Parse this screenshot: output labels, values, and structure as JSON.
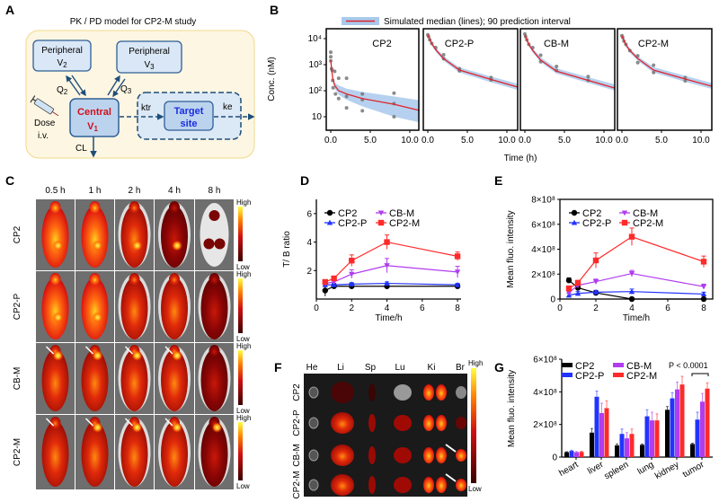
{
  "panel_letters": {
    "A": "A",
    "B": "B",
    "C": "C",
    "D": "D",
    "E": "E",
    "F": "F",
    "G": "G"
  },
  "panel_a": {
    "title": "PK / PD model for CP2-M study",
    "peripheral_v2": {
      "label": "Peripheral",
      "sym": "V",
      "sub": "2"
    },
    "peripheral_v3": {
      "label": "Peripheral",
      "sym": "V",
      "sub": "3"
    },
    "central": {
      "label": "Central",
      "sym": "V",
      "sub": "1"
    },
    "target": {
      "line1": "Target",
      "line2": "site"
    },
    "q2": {
      "sym": "Q",
      "sub": "2"
    },
    "q3": {
      "sym": "Q",
      "sub": "3"
    },
    "ktr": "ktr",
    "ke": "ke",
    "cl": "CL",
    "dose": "Dose",
    "route": "i.v."
  },
  "panel_c": {
    "times": [
      "0.5 h",
      "1 h",
      "2 h",
      "4 h",
      "8 h"
    ],
    "rows": [
      "CP2",
      "CP2-P",
      "CB-M",
      "CP2-M"
    ],
    "colorbar_high": "High",
    "colorbar_low": "Low"
  },
  "panel_f": {
    "organs": [
      "He",
      "Li",
      "Sp",
      "Lu",
      "Ki",
      "Br"
    ],
    "rows": [
      "CP2",
      "CP2-P",
      "CB-M",
      "CP2-M"
    ],
    "colorbar_high": "High",
    "colorbar_low": "Low"
  },
  "colors": {
    "CP2": "#000000",
    "CP2-P": "#2233ff",
    "CB-M": "#b13cf0",
    "CP2-M": "#ff2a2a",
    "band": "#a9c9ec",
    "median": "#e0242b"
  },
  "chart_data": [
    {
      "id": "B",
      "type": "line",
      "legend": "Simulated median (lines); 90 prediction interval",
      "xlabel": "Time (h)",
      "ylabel": "Conc. (nM)",
      "yscale": "log",
      "ylim": [
        4,
        20000
      ],
      "xlim": [
        -0.6,
        13
      ],
      "xticks": [
        0,
        5,
        10
      ],
      "xtick_labels": [
        "0.0",
        "5.0",
        "10.0"
      ],
      "yticks": [
        10,
        100,
        1000,
        10000
      ],
      "ytick_labels": [
        "10",
        "10²",
        "10³",
        "10⁴"
      ],
      "panels": [
        {
          "name": "CP2",
          "t": [
            0,
            0.1,
            0.25,
            0.5,
            1,
            2,
            4,
            8,
            12.5
          ],
          "median": [
            1500,
            700,
            300,
            160,
            100,
            75,
            50,
            30,
            14
          ],
          "lower": [
            1300,
            600,
            250,
            120,
            70,
            45,
            25,
            10,
            5
          ],
          "upper": [
            1700,
            800,
            350,
            200,
            160,
            120,
            90,
            60,
            38
          ],
          "observed": [
            [
              0,
              3000
            ],
            [
              0,
              2000
            ],
            [
              0,
              1400
            ],
            [
              0.1,
              700
            ],
            [
              0.2,
              600
            ],
            [
              0.25,
              250
            ],
            [
              0.3,
              130
            ],
            [
              0.5,
              550
            ],
            [
              0.6,
              75
            ],
            [
              1,
              300
            ],
            [
              1,
              50
            ],
            [
              2,
              300
            ],
            [
              2,
              60
            ],
            [
              2,
              22
            ],
            [
              4,
              75
            ],
            [
              4,
              45
            ],
            [
              4,
              17
            ],
            [
              8,
              80
            ],
            [
              8,
              32
            ],
            [
              8,
              10
            ],
            [
              12.5,
              38
            ],
            [
              12.5,
              25
            ],
            [
              12.5,
              9
            ]
          ]
        },
        {
          "name": "CP2-P",
          "t": [
            0,
            0.25,
            0.5,
            1,
            2,
            4,
            8,
            12.5
          ],
          "median": [
            14000,
            9500,
            6500,
            3800,
            1700,
            620,
            270,
            110
          ],
          "lower": [
            12000,
            8000,
            5400,
            3100,
            1400,
            500,
            210,
            85
          ],
          "upper": [
            16000,
            11000,
            7600,
            4500,
            2100,
            780,
            350,
            150
          ],
          "observed": [
            [
              0,
              14000
            ],
            [
              0.1,
              12000
            ],
            [
              0.25,
              9000
            ],
            [
              0.5,
              6500
            ],
            [
              1,
              4500
            ],
            [
              2,
              2400
            ],
            [
              2,
              1700
            ],
            [
              4,
              700
            ],
            [
              4,
              580
            ],
            [
              8,
              320
            ],
            [
              8,
              260
            ],
            [
              12.5,
              110
            ]
          ]
        },
        {
          "name": "CB-M",
          "t": [
            0,
            0.25,
            0.5,
            1,
            2,
            4,
            8,
            12.5
          ],
          "median": [
            14000,
            9000,
            6000,
            3500,
            1500,
            560,
            250,
            100
          ],
          "lower": [
            12000,
            7600,
            5000,
            2900,
            1250,
            450,
            200,
            80
          ],
          "upper": [
            16000,
            10500,
            7000,
            4200,
            1900,
            720,
            330,
            140
          ],
          "observed": [
            [
              0,
              15000
            ],
            [
              0.1,
              12000
            ],
            [
              0.25,
              9000
            ],
            [
              0.5,
              6000
            ],
            [
              1,
              4500
            ],
            [
              2,
              2300
            ],
            [
              2,
              1300
            ],
            [
              4,
              850
            ],
            [
              4,
              600
            ],
            [
              8,
              350
            ],
            [
              8,
              250
            ],
            [
              12.5,
              100
            ]
          ]
        },
        {
          "name": "CP2-M",
          "t": [
            0,
            0.25,
            0.5,
            1,
            2,
            4,
            8,
            12.5
          ],
          "median": [
            13000,
            8500,
            5800,
            3500,
            1700,
            620,
            280,
            120
          ],
          "lower": [
            11000,
            7200,
            4800,
            2900,
            1400,
            500,
            220,
            95
          ],
          "upper": [
            15000,
            10000,
            6900,
            4200,
            2100,
            800,
            370,
            160
          ],
          "observed": [
            [
              0,
              13000
            ],
            [
              0.1,
              11000
            ],
            [
              0.25,
              8000
            ],
            [
              0.5,
              6000
            ],
            [
              1,
              3500
            ],
            [
              2,
              2200
            ],
            [
              2,
              1200
            ],
            [
              4,
              950
            ],
            [
              4,
              500
            ],
            [
              8,
              320
            ],
            [
              8,
              240
            ],
            [
              12.5,
              100
            ],
            [
              12.5,
              85
            ]
          ]
        }
      ]
    },
    {
      "id": "D",
      "type": "line",
      "xlabel": "Time/h",
      "ylabel": "T/ B ratio",
      "xlim": [
        0,
        8.2
      ],
      "ylim": [
        0,
        7
      ],
      "xticks": [
        0,
        2,
        4,
        6,
        8
      ],
      "yticks": [
        2,
        4,
        6
      ],
      "xtick_labels": [
        "0",
        "2",
        "4",
        "6",
        "8"
      ],
      "ytick_labels": [
        "2",
        "4",
        "6"
      ],
      "legend": "top-left",
      "x": [
        0.5,
        1,
        2,
        4,
        8
      ],
      "series": [
        {
          "name": "CP2",
          "marker": "circle",
          "values": [
            0.6,
            0.9,
            0.9,
            0.9,
            0.9
          ],
          "error": [
            0.4,
            0.15,
            0.2,
            0.2,
            0.15
          ]
        },
        {
          "name": "CP2-P",
          "marker": "triangle-up",
          "values": [
            1.0,
            1.0,
            1.05,
            1.1,
            1.0
          ],
          "error": [
            0.1,
            0.1,
            0.1,
            0.1,
            0.1
          ]
        },
        {
          "name": "CB-M",
          "marker": "triangle-down",
          "values": [
            1.1,
            1.2,
            1.75,
            2.35,
            1.9
          ],
          "error": [
            0.1,
            0.15,
            0.3,
            0.5,
            0.4
          ]
        },
        {
          "name": "CP2-M",
          "marker": "square",
          "values": [
            1.2,
            1.45,
            2.7,
            4.0,
            3.0
          ],
          "error": [
            0.1,
            0.15,
            0.4,
            0.5,
            0.3
          ]
        }
      ]
    },
    {
      "id": "E",
      "type": "line",
      "xlabel": "Time/h",
      "ylabel": "Mean fluo. intensity",
      "xlim": [
        0,
        8.5
      ],
      "ylim": [
        0,
        800000000
      ],
      "xticks": [
        0,
        2,
        4,
        6,
        8
      ],
      "yticks": [
        0,
        200000000,
        400000000,
        600000000,
        800000000
      ],
      "xtick_labels": [
        "0",
        "2",
        "4",
        "6",
        "8"
      ],
      "ytick_labels": [
        "0",
        "2×10⁸",
        "4×10⁸",
        "6×10⁸",
        "8×10⁸"
      ],
      "legend": "top-left",
      "x": [
        0.5,
        1,
        2,
        4,
        8
      ],
      "series": [
        {
          "name": "CP2",
          "marker": "circle",
          "values": [
            150000000,
            90000000,
            50000000,
            0,
            0
          ],
          "error": [
            20000000,
            15000000,
            15000000,
            5000000,
            5000000
          ]
        },
        {
          "name": "CP2-P",
          "marker": "triangle-up",
          "values": [
            30000000,
            45000000,
            55000000,
            60000000,
            40000000
          ],
          "error": [
            15000000,
            15000000,
            15000000,
            20000000,
            15000000
          ]
        },
        {
          "name": "CB-M",
          "marker": "triangle-down",
          "values": [
            50000000,
            110000000,
            140000000,
            205000000,
            100000000
          ],
          "error": [
            15000000,
            20000000,
            20000000,
            25000000,
            20000000
          ]
        },
        {
          "name": "CP2-M",
          "marker": "square",
          "values": [
            85000000,
            130000000,
            310000000,
            500000000,
            300000000
          ],
          "error": [
            20000000,
            20000000,
            60000000,
            70000000,
            45000000
          ]
        }
      ]
    },
    {
      "id": "G",
      "type": "bar",
      "ylabel": "Mean fluo. intensity",
      "ylim": [
        0,
        600000000
      ],
      "yticks": [
        0,
        200000000,
        400000000,
        600000000
      ],
      "ytick_labels": [
        "0",
        "2×10⁸",
        "4×10⁸",
        "6×10⁸"
      ],
      "legend": "top-left",
      "annotation": "P < 0.0001",
      "categories": [
        "heart",
        "liver",
        "spleen",
        "lung",
        "kidney",
        "tumor"
      ],
      "series": [
        {
          "name": "CP2",
          "values": [
            30000000,
            150000000,
            72000000,
            75000000,
            290000000,
            80000000
          ],
          "error": [
            3000000,
            25000000,
            8000000,
            5000000,
            20000000,
            5000000
          ]
        },
        {
          "name": "CP2-P",
          "values": [
            38000000,
            370000000,
            142000000,
            250000000,
            360000000,
            230000000
          ],
          "error": [
            4000000,
            35000000,
            30000000,
            40000000,
            35000000,
            45000000
          ]
        },
        {
          "name": "CB-M",
          "values": [
            30000000,
            270000000,
            115000000,
            225000000,
            415000000,
            340000000
          ],
          "error": [
            4000000,
            60000000,
            35000000,
            50000000,
            45000000,
            50000000
          ]
        },
        {
          "name": "CP2-M",
          "values": [
            32000000,
            300000000,
            142000000,
            225000000,
            445000000,
            420000000
          ],
          "error": [
            4000000,
            45000000,
            30000000,
            40000000,
            50000000,
            35000000
          ]
        }
      ]
    }
  ]
}
